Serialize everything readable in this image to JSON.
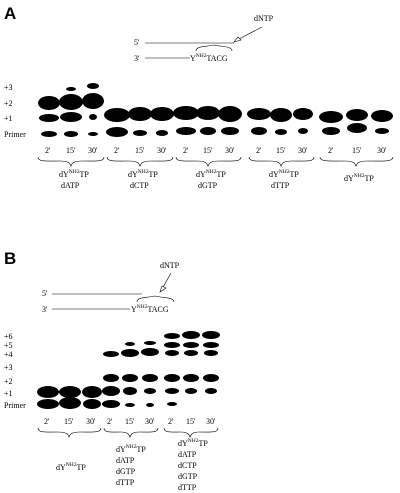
{
  "panels": [
    {
      "id": "A",
      "label": "A",
      "substrate": {
        "five_prime": "5'",
        "three_prime": "3'",
        "template_base": "Y",
        "template_sup": "NH2",
        "template_tail": "TACG",
        "incoming": "dNTP"
      },
      "row_labels": [
        "+3",
        "+2",
        "+1",
        "Primer"
      ],
      "time_labels": [
        "2'",
        "15'",
        "30'"
      ],
      "groups": [
        {
          "lines": [
            {
              "text": "dY",
              "sup": "NH2",
              "tail": "TP"
            },
            {
              "text": "dATP"
            }
          ]
        },
        {
          "lines": [
            {
              "text": "dY",
              "sup": "NH2",
              "tail": "TP"
            },
            {
              "text": "dCTP"
            }
          ]
        },
        {
          "lines": [
            {
              "text": "dY",
              "sup": "NH2",
              "tail": "TP"
            },
            {
              "text": "dGTP"
            }
          ]
        },
        {
          "lines": [
            {
              "text": "dY",
              "sup": "NH2",
              "tail": "TP"
            },
            {
              "text": "dTTP"
            }
          ]
        },
        {
          "lines": [
            {
              "text": "dY",
              "sup": "NH2",
              "tail": "TP"
            }
          ]
        }
      ]
    },
    {
      "id": "B",
      "label": "B",
      "substrate": {
        "five_prime": "5'",
        "three_prime": "3'",
        "template_base": "Y",
        "template_sup": "NH2",
        "template_tail": "TACG",
        "incoming": "dNTP"
      },
      "row_labels": [
        "+6",
        "+5",
        "+4",
        "+3",
        "+2",
        "+1",
        "Primer"
      ],
      "time_labels": [
        "2'",
        "15'",
        "30'"
      ],
      "groups": [
        {
          "lines": [
            {
              "text": "dY",
              "sup": "NH2",
              "tail": "TP"
            }
          ]
        },
        {
          "lines": [
            {
              "text": "dY",
              "sup": "NH2",
              "tail": "TP"
            },
            {
              "text": "dATP"
            },
            {
              "text": "dGTP"
            },
            {
              "text": "dTTP"
            }
          ]
        },
        {
          "lines": [
            {
              "text": "dY",
              "sup": "NH2",
              "tail": "TP"
            },
            {
              "text": "dATP"
            },
            {
              "text": "dCTP"
            },
            {
              "text": "dGTP"
            },
            {
              "text": "dTTP"
            }
          ]
        }
      ]
    }
  ]
}
